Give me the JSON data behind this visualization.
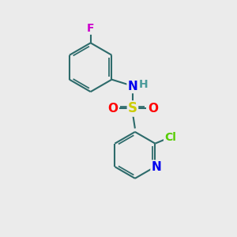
{
  "background_color": "#ebebeb",
  "bond_color": "#2d6b6b",
  "bond_width": 1.5,
  "atom_colors": {
    "F": "#cc00cc",
    "N_amine": "#0000ee",
    "H": "#4a9a9a",
    "S": "#cccc00",
    "O": "#ff0000",
    "Cl": "#55cc00",
    "N_pyridine": "#0000ee"
  }
}
